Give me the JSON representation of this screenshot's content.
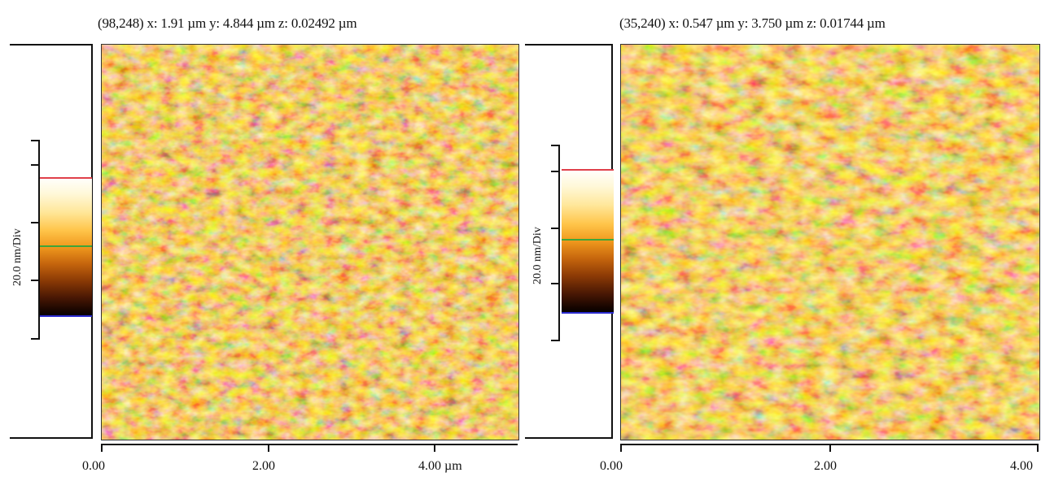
{
  "panels": [
    {
      "readout": "(98,248)  x: 1.91 µm   y: 4.844 µm  z: 0.02492 µm",
      "colorbar_label": "20.0 nm/Div",
      "x_ticks": [
        "0.00",
        "2.00",
        "4.00 µm"
      ],
      "scan_colors": [
        "#e8a33a",
        "#7a3c10",
        "#ffe7a8"
      ]
    },
    {
      "readout": "(35,240)  x: 0.547 µm   y: 3.750 µm  z: 0.01744 µm",
      "colorbar_label": "20.0 nm/Div",
      "x_ticks": [
        "0.00",
        "2.00",
        "4.00"
      ],
      "scan_colors": [
        "#e8a33a",
        "#7a3c10",
        "#ffe7a8"
      ]
    }
  ],
  "colorbar_marker_colors": {
    "top": "#e0404a",
    "middle": "#3fa53a",
    "bottom": "#2b2bd0"
  }
}
